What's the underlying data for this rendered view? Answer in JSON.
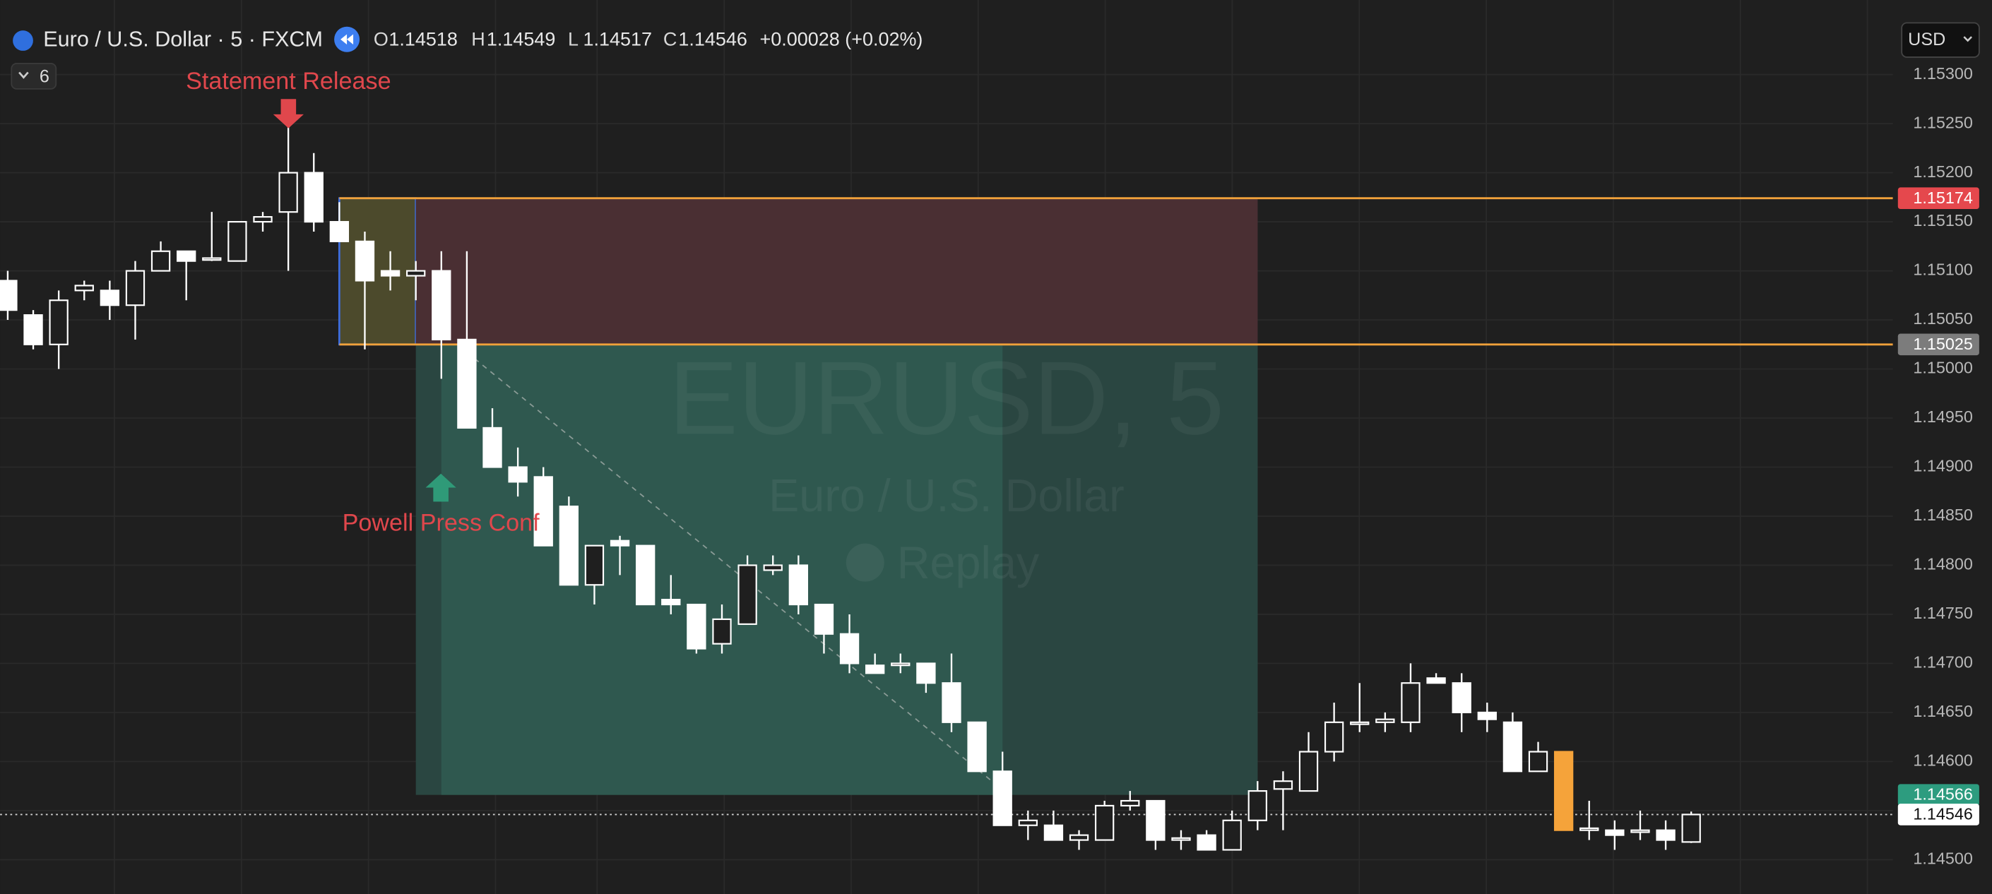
{
  "header": {
    "symbol": "Euro / U.S. Dollar · 5 · FXCM",
    "o": "O",
    "h": "H",
    "l": "L",
    "c": "C",
    "change": "+0.00028 (+0.02%)",
    "indicators": "6",
    "currency": "USD"
  },
  "watermark": {
    "ticker": "EURUSD, 5",
    "name": "Euro / U.S. Dollar",
    "mode": "Replay"
  },
  "chart_data": {
    "type": "candlestick",
    "annotations": [
      {
        "text": "Statement Release",
        "color": "#e0474c"
      },
      {
        "text": "Powell Press Conf",
        "color": "#e0474c"
      }
    ],
    "open": [
      1.1509,
      1.15055,
      1.15025,
      1.1508,
      1.1508,
      1.15065,
      1.151,
      1.1512,
      1.15112,
      1.1511,
      1.1515,
      1.1516,
      1.152,
      1.1515,
      1.1513,
      1.151,
      1.15095,
      1.151,
      1.1503,
      1.1494,
      1.149,
      1.1489,
      1.1486,
      1.1478,
      1.14825,
      1.1482,
      1.14765,
      1.1476,
      1.1472,
      1.1474,
      1.14795,
      1.148,
      1.1476,
      1.1473,
      1.14698,
      1.14698,
      1.147,
      1.1468,
      1.1464,
      1.1459,
      1.14535,
      1.14535,
      1.1452,
      1.1452,
      1.14555,
      1.1456,
      1.1452,
      1.14525,
      1.1451,
      1.1454,
      1.14572,
      1.1457,
      1.1461,
      1.14638,
      1.1464,
      1.1464,
      1.14685,
      1.1468,
      1.1465,
      1.1464,
      1.1459,
      1.1461,
      1.1453,
      1.1453,
      1.14528,
      1.1453,
      1.14518
    ],
    "high": [
      1.151,
      1.1506,
      1.1508,
      1.1509,
      1.1509,
      1.1511,
      1.1513,
      1.1512,
      1.1516,
      1.1515,
      1.1516,
      1.1526,
      1.1522,
      1.1517,
      1.1514,
      1.1512,
      1.1511,
      1.1512,
      1.1512,
      1.1496,
      1.1492,
      1.149,
      1.1487,
      1.1482,
      1.1483,
      1.1482,
      1.1479,
      1.1476,
      1.1476,
      1.1481,
      1.1481,
      1.1481,
      1.1476,
      1.1475,
      1.1471,
      1.1471,
      1.147,
      1.1471,
      1.1464,
      1.1461,
      1.1455,
      1.1455,
      1.1453,
      1.1456,
      1.1457,
      1.1456,
      1.1453,
      1.1453,
      1.1455,
      1.1458,
      1.1459,
      1.1463,
      1.1466,
      1.1468,
      1.1465,
      1.147,
      1.1469,
      1.1469,
      1.1466,
      1.1465,
      1.1462,
      1.1461,
      1.1456,
      1.1454,
      1.1455,
      1.1454,
      1.14549
    ],
    "low": [
      1.1505,
      1.1502,
      1.15,
      1.1507,
      1.1505,
      1.1503,
      1.151,
      1.1507,
      1.1511,
      1.1511,
      1.1514,
      1.151,
      1.1514,
      1.1513,
      1.1502,
      1.1508,
      1.1507,
      1.1499,
      1.1494,
      1.149,
      1.1487,
      1.1482,
      1.1478,
      1.1476,
      1.1479,
      1.1476,
      1.1475,
      1.1471,
      1.1471,
      1.1474,
      1.1479,
      1.1475,
      1.1471,
      1.1469,
      1.1469,
      1.1469,
      1.1467,
      1.1463,
      1.1459,
      1.14535,
      1.1452,
      1.1452,
      1.1451,
      1.1452,
      1.1455,
      1.1451,
      1.1451,
      1.1451,
      1.1451,
      1.1453,
      1.1453,
      1.1457,
      1.146,
      1.1463,
      1.1463,
      1.1463,
      1.1468,
      1.1463,
      1.1463,
      1.1459,
      1.1459,
      1.1453,
      1.1452,
      1.1451,
      1.1452,
      1.1451,
      1.14517
    ],
    "close": [
      1.1506,
      1.15025,
      1.1507,
      1.15085,
      1.15065,
      1.151,
      1.1512,
      1.1511,
      1.15113,
      1.1515,
      1.15155,
      1.152,
      1.1515,
      1.1513,
      1.1509,
      1.15095,
      1.151,
      1.1503,
      1.1494,
      1.149,
      1.14885,
      1.1482,
      1.1478,
      1.1482,
      1.1482,
      1.1476,
      1.1476,
      1.14715,
      1.14745,
      1.148,
      1.148,
      1.1476,
      1.1473,
      1.147,
      1.1469,
      1.147,
      1.1468,
      1.1464,
      1.1459,
      1.14535,
      1.1454,
      1.1452,
      1.14525,
      1.14555,
      1.1456,
      1.1452,
      1.14522,
      1.1451,
      1.1454,
      1.1457,
      1.1458,
      1.1461,
      1.1464,
      1.1464,
      1.14643,
      1.1468,
      1.1468,
      1.1465,
      1.14643,
      1.1459,
      1.1461,
      1.1453,
      1.14532,
      1.14525,
      1.1453,
      1.1452,
      1.14546
    ],
    "up_color": "#ffffff",
    "down_color": "#ffffff",
    "highlighted_candle": {
      "index": 61,
      "color": "#f5a33a"
    },
    "position": {
      "stop": 1.15174,
      "entry": 1.15025,
      "target": 1.14566,
      "stop_color": "#e5484d",
      "entry_color": "#7c7c7c",
      "target_color": "#2d9c7f",
      "line_color": "#f0a13a"
    },
    "ylim": [
      1.14465,
      1.15376
    ],
    "yticks": [
      {
        "value": 1.153,
        "label": "1.15300"
      },
      {
        "value": 1.1525,
        "label": "1.15250"
      },
      {
        "value": 1.152,
        "label": "1.15200"
      },
      {
        "value": 1.1515,
        "label": "1.15150"
      },
      {
        "value": 1.151,
        "label": "1.15100"
      },
      {
        "value": 1.1505,
        "label": "1.15050"
      },
      {
        "value": 1.15,
        "label": "1.15000"
      },
      {
        "value": 1.1495,
        "label": "1.14950"
      },
      {
        "value": 1.149,
        "label": "1.14900"
      },
      {
        "value": 1.1485,
        "label": "1.14850"
      },
      {
        "value": 1.148,
        "label": "1.14800"
      },
      {
        "value": 1.1475,
        "label": "1.14750"
      },
      {
        "value": 1.147,
        "label": "1.14700"
      },
      {
        "value": 1.1465,
        "label": "1.14650"
      },
      {
        "value": 1.146,
        "label": "1.14600"
      },
      {
        "value": 1.1455,
        "label": "1.14550"
      },
      {
        "value": 1.145,
        "label": "1.14500"
      }
    ],
    "grid": true
  }
}
